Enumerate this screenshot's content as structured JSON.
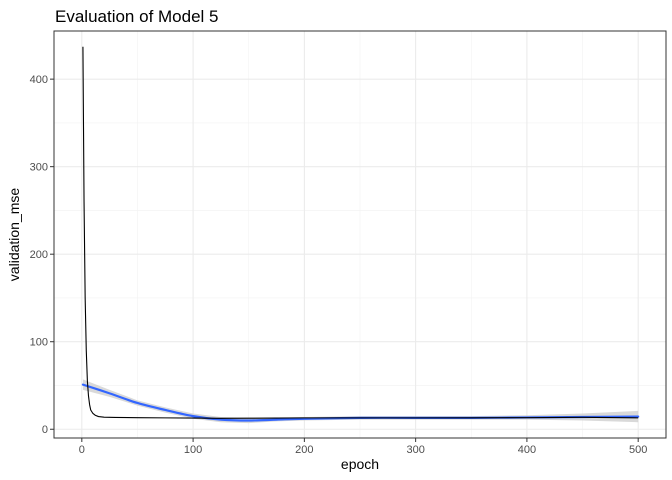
{
  "chart_data": {
    "type": "line",
    "title": "Evaluation of Model 5",
    "xlabel": "epoch",
    "ylabel": "validation_mse",
    "xlim": [
      -25,
      525
    ],
    "ylim": [
      -10,
      455
    ],
    "x_ticks": [
      0,
      100,
      200,
      300,
      400,
      500
    ],
    "y_ticks": [
      0,
      100,
      200,
      300,
      400
    ],
    "grid": true,
    "legend": "none",
    "series": [
      {
        "style": "line",
        "color": "#000000",
        "points": [
          [
            1,
            437
          ],
          [
            2,
            260
          ],
          [
            3,
            150
          ],
          [
            4,
            90
          ],
          [
            5,
            55
          ],
          [
            6,
            38
          ],
          [
            7,
            28
          ],
          [
            8,
            22
          ],
          [
            10,
            18
          ],
          [
            12,
            16
          ],
          [
            15,
            14.5
          ],
          [
            20,
            13.8
          ],
          [
            30,
            13.5
          ],
          [
            50,
            13.2
          ],
          [
            75,
            13.0
          ],
          [
            100,
            12.8
          ],
          [
            125,
            12.5
          ],
          [
            150,
            12.6
          ],
          [
            175,
            12.8
          ],
          [
            200,
            13.0
          ],
          [
            250,
            13.0
          ],
          [
            300,
            13.0
          ],
          [
            350,
            13.1
          ],
          [
            400,
            13.2
          ],
          [
            450,
            13.6
          ],
          [
            500,
            13.0
          ]
        ]
      },
      {
        "style": "smooth",
        "color": "#3366ff",
        "band_color": "#cccccc",
        "points": [
          [
            1,
            51
          ],
          [
            25,
            41
          ],
          [
            50,
            30
          ],
          [
            75,
            22
          ],
          [
            100,
            15
          ],
          [
            125,
            11
          ],
          [
            150,
            10
          ],
          [
            175,
            11
          ],
          [
            200,
            12
          ],
          [
            250,
            13
          ],
          [
            300,
            13
          ],
          [
            350,
            13
          ],
          [
            400,
            13.5
          ],
          [
            450,
            14
          ],
          [
            500,
            14.5
          ]
        ],
        "band": [
          [
            1,
            45,
            57
          ],
          [
            25,
            37,
            45
          ],
          [
            50,
            27,
            33
          ],
          [
            75,
            19,
            25
          ],
          [
            100,
            12,
            18
          ],
          [
            125,
            8,
            14
          ],
          [
            150,
            7,
            13
          ],
          [
            175,
            9,
            13
          ],
          [
            200,
            10,
            14
          ],
          [
            250,
            11,
            15
          ],
          [
            300,
            11,
            15
          ],
          [
            350,
            11,
            15
          ],
          [
            400,
            11,
            16
          ],
          [
            450,
            10,
            18
          ],
          [
            500,
            8,
            21
          ]
        ]
      }
    ]
  }
}
